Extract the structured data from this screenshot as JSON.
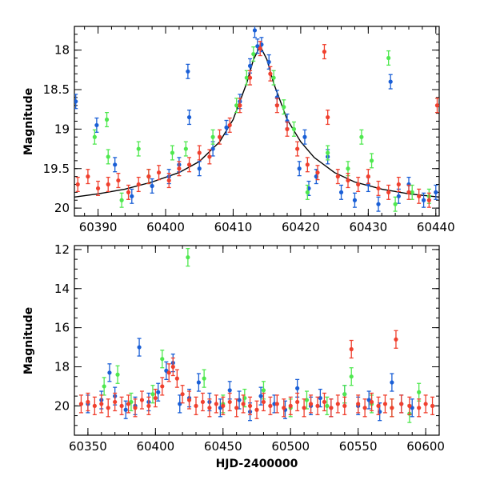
{
  "colors": {
    "blue": "#1a5fd6",
    "green": "#4fe84f",
    "red": "#f0402e",
    "model": "#000000"
  },
  "chart_data": [
    {
      "type": "scatter",
      "title": "",
      "xlabel": "",
      "ylabel": "Magnitude",
      "xlim": [
        60386.5,
        60440.5
      ],
      "ylim": [
        20.1,
        17.7
      ],
      "y_inverted": true,
      "xticks": [
        "60390",
        "60400",
        "60410",
        "60420",
        "60430",
        "60440"
      ],
      "yticks": [
        "18",
        "18.5",
        "19",
        "19.5",
        "20"
      ],
      "model_curve": {
        "x": [
          60386.5,
          60390,
          60394,
          60398,
          60402,
          60405,
          60408,
          60410,
          60412,
          60413,
          60414,
          60415,
          60416,
          60418,
          60420,
          60422,
          60425,
          60428,
          60432,
          60436,
          60440.5
        ],
        "y": [
          19.86,
          19.82,
          19.76,
          19.67,
          19.55,
          19.41,
          19.16,
          18.88,
          18.42,
          18.12,
          17.95,
          18.12,
          18.42,
          18.88,
          19.16,
          19.36,
          19.55,
          19.67,
          19.76,
          19.82,
          19.86
        ]
      },
      "series": [
        {
          "color": "blue",
          "x": [
            60386.7,
            60389.8,
            60392.5,
            60395.0,
            60398.0,
            60400.5,
            60402.0,
            60403.3,
            60403.5,
            60405.0,
            60407.0,
            60409.0,
            60411.0,
            60412.5,
            60413.2,
            60413.6,
            60414.2,
            60415.3,
            60416.5,
            60418.0,
            60419.8,
            60420.6,
            60421.2,
            60422.3,
            60424.0,
            60426.0,
            60428.0,
            60430.0,
            60431.5,
            60433.3,
            60434.5,
            60436.0,
            60438.2,
            60440.0
          ],
          "y": [
            18.65,
            18.95,
            19.45,
            19.85,
            19.72,
            19.6,
            19.45,
            18.27,
            18.85,
            19.5,
            19.25,
            18.98,
            18.65,
            18.2,
            17.75,
            17.95,
            17.93,
            18.15,
            18.6,
            18.9,
            19.5,
            19.1,
            19.75,
            19.6,
            19.35,
            19.8,
            19.9,
            19.7,
            19.95,
            18.4,
            19.85,
            19.7,
            19.9,
            19.8
          ]
        },
        {
          "color": "green",
          "x": [
            60389.5,
            60391.3,
            60391.5,
            60393.5,
            60396.0,
            60397.5,
            60401.0,
            60403.0,
            60407.0,
            60410.5,
            60412.0,
            60413.0,
            60416.0,
            60417.5,
            60419.0,
            60421.0,
            60424.0,
            60427.0,
            60429.0,
            60430.5,
            60433.0,
            60434.0,
            60436.5,
            60439.0
          ],
          "y": [
            19.1,
            18.88,
            19.35,
            19.9,
            19.25,
            19.6,
            19.3,
            19.25,
            19.1,
            18.7,
            18.35,
            18.05,
            18.35,
            18.72,
            19.0,
            19.8,
            19.3,
            19.5,
            19.1,
            19.4,
            18.1,
            19.95,
            19.8,
            19.85
          ]
        },
        {
          "color": "red",
          "x": [
            60387.0,
            60388.5,
            60390.0,
            60391.5,
            60393.0,
            60394.5,
            60396.0,
            60397.5,
            60399.0,
            60400.5,
            60402.0,
            60403.5,
            60405.0,
            60406.5,
            60408.0,
            60409.5,
            60411.0,
            60412.5,
            60414.0,
            60415.5,
            60416.5,
            60418.0,
            60419.5,
            60421.0,
            60422.5,
            60423.5,
            60424.0,
            60425.5,
            60427.0,
            60428.5,
            60430.0,
            60431.5,
            60433.0,
            60434.5,
            60436.0,
            60437.5,
            60439.0,
            60440.2
          ],
          "y": [
            19.7,
            19.6,
            19.75,
            19.7,
            19.65,
            19.8,
            19.7,
            19.6,
            19.55,
            19.65,
            19.5,
            19.45,
            19.3,
            19.35,
            19.1,
            18.95,
            18.7,
            18.35,
            17.98,
            18.3,
            18.7,
            19.0,
            19.25,
            19.45,
            19.55,
            18.02,
            18.85,
            19.6,
            19.65,
            19.7,
            19.6,
            19.75,
            19.8,
            19.7,
            19.8,
            19.85,
            19.9,
            18.7
          ]
        }
      ]
    },
    {
      "type": "scatter",
      "title": "",
      "xlabel": "HJD-2400000",
      "ylabel": "Magnitude",
      "xlim": [
        60340,
        60610
      ],
      "ylim": [
        21.5,
        11.8
      ],
      "y_inverted": true,
      "xticks": [
        "60350",
        "60400",
        "60450",
        "60500",
        "60550",
        "60600"
      ],
      "yticks": [
        "12",
        "14",
        "16",
        "18",
        "20"
      ],
      "series": [
        {
          "color": "blue",
          "x": [
            60350,
            60360,
            60366,
            60370,
            60378,
            60385,
            60388,
            60395,
            60402,
            60408,
            60413,
            60418,
            60425,
            60432,
            60440,
            60448,
            60455,
            60462,
            60470,
            60478,
            60488,
            60496,
            60505,
            60515,
            60522,
            60530,
            60540,
            60550,
            60558,
            60566,
            60575,
            60582,
            60590
          ],
          "y": [
            19.9,
            19.7,
            18.3,
            19.5,
            20.2,
            20.0,
            17.0,
            19.8,
            19.3,
            18.2,
            17.8,
            19.9,
            19.6,
            18.8,
            19.8,
            20.1,
            19.2,
            19.7,
            20.3,
            19.5,
            19.9,
            20.2,
            19.1,
            20.0,
            19.6,
            20.1,
            19.4,
            20.0,
            19.7,
            20.3,
            18.8,
            19.9,
            20.1
          ]
        },
        {
          "color": "green",
          "x": [
            60362,
            60372,
            60382,
            60398,
            60405,
            60424,
            60436,
            60450,
            60466,
            60480,
            60500,
            60512,
            60527,
            60540,
            60545,
            60560,
            60575,
            60588,
            60595
          ],
          "y": [
            19.0,
            18.4,
            19.8,
            19.4,
            17.6,
            12.4,
            18.6,
            19.9,
            19.6,
            19.2,
            20.1,
            19.7,
            20.0,
            19.4,
            18.5,
            19.9,
            20.1,
            20.4,
            19.3
          ]
        },
        {
          "color": "red",
          "x": [
            60345,
            60350,
            60355,
            60360,
            60365,
            60370,
            60375,
            60380,
            60385,
            60390,
            60395,
            60400,
            60405,
            60410,
            60413,
            60416,
            60420,
            60425,
            60430,
            60435,
            60440,
            60445,
            60450,
            60455,
            60460,
            60465,
            60470,
            60475,
            60480,
            60485,
            60490,
            60495,
            60500,
            60505,
            60510,
            60515,
            60520,
            60525,
            60530,
            60535,
            60540,
            60545,
            60550,
            60555,
            60560,
            60565,
            60570,
            60575,
            60578,
            60582,
            60588,
            60595,
            60600,
            60605
          ],
          "y": [
            19.9,
            19.8,
            20.0,
            19.9,
            20.1,
            19.8,
            20.0,
            19.9,
            20.1,
            19.7,
            20.0,
            19.6,
            19.0,
            18.3,
            18.0,
            18.6,
            19.4,
            19.7,
            20.0,
            19.8,
            20.1,
            19.9,
            20.0,
            19.8,
            20.1,
            19.9,
            20.0,
            20.2,
            19.8,
            20.0,
            19.9,
            20.1,
            20.0,
            19.8,
            20.1,
            19.9,
            20.0,
            19.8,
            20.1,
            19.9,
            20.0,
            17.1,
            19.9,
            20.1,
            19.8,
            20.0,
            19.9,
            20.1,
            16.6,
            19.9,
            20.0,
            20.1,
            19.9,
            20.0
          ]
        }
      ]
    }
  ]
}
